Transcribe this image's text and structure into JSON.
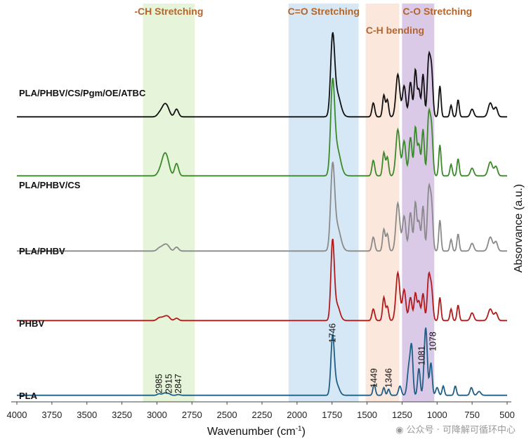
{
  "chart_data": {
    "type": "line",
    "xlabel": "Wavenumber (cm",
    "xlabel_sup": "-1",
    "xlabel_end": ")",
    "ylabel": "Absorvance (a.u.)",
    "x_reversed": true,
    "xlim": [
      4000,
      500
    ],
    "x_ticks": [
      4000,
      3750,
      3500,
      3250,
      3000,
      2750,
      2500,
      2250,
      2000,
      1750,
      1500,
      1250,
      1000,
      750,
      500
    ],
    "regions": [
      {
        "label": "-CH Stretching",
        "from": 3100,
        "to": 2730,
        "color": "#e6f4d9"
      },
      {
        "label": "C=O Stretching",
        "from": 2060,
        "to": 1560,
        "color": "#d6e8f6"
      },
      {
        "label": "C-H bending",
        "from": 1510,
        "to": 1270,
        "color": "#fbe7dc"
      },
      {
        "label": "C-O Stretching",
        "from": 1250,
        "to": 1020,
        "color": "#dbc9e8"
      }
    ],
    "series": [
      {
        "name": "PLA/PHBV/CS/Pgm/OE/ATBC",
        "color": "#111111",
        "base": 0.07,
        "peaks": [
          [
            2985,
            0.03,
            15
          ],
          [
            2945,
            0.16,
            22
          ],
          [
            2920,
            0.04,
            15
          ],
          [
            2860,
            0.1,
            14
          ],
          [
            1746,
            0.95,
            14
          ],
          [
            1715,
            0.3,
            25
          ],
          [
            1455,
            0.18,
            10
          ],
          [
            1380,
            0.28,
            9
          ],
          [
            1355,
            0.22,
            9
          ],
          [
            1280,
            0.55,
            14
          ],
          [
            1235,
            0.4,
            12
          ],
          [
            1190,
            0.45,
            11
          ],
          [
            1155,
            0.6,
            9
          ],
          [
            1130,
            0.35,
            10
          ],
          [
            1100,
            0.55,
            9
          ],
          [
            1060,
            0.72,
            10
          ],
          [
            1040,
            0.6,
            10
          ],
          [
            980,
            0.4,
            8
          ],
          [
            900,
            0.15,
            8
          ],
          [
            850,
            0.22,
            8
          ],
          [
            750,
            0.1,
            12
          ],
          [
            620,
            0.18,
            15
          ],
          [
            580,
            0.12,
            12
          ]
        ]
      },
      {
        "name": "PLA/PHBV/CS",
        "color": "#3a8a2a",
        "base": 0.07,
        "peaks": [
          [
            2985,
            0.03,
            15
          ],
          [
            2945,
            0.28,
            22
          ],
          [
            2920,
            0.06,
            15
          ],
          [
            2860,
            0.16,
            14
          ],
          [
            1746,
            1.1,
            14
          ],
          [
            1715,
            0.35,
            25
          ],
          [
            1455,
            0.2,
            10
          ],
          [
            1380,
            0.3,
            9
          ],
          [
            1355,
            0.24,
            9
          ],
          [
            1280,
            0.6,
            14
          ],
          [
            1235,
            0.45,
            12
          ],
          [
            1190,
            0.5,
            11
          ],
          [
            1155,
            0.62,
            9
          ],
          [
            1130,
            0.4,
            10
          ],
          [
            1100,
            0.6,
            9
          ],
          [
            1060,
            0.75,
            10
          ],
          [
            1040,
            0.6,
            10
          ],
          [
            980,
            0.4,
            8
          ],
          [
            900,
            0.15,
            8
          ],
          [
            850,
            0.22,
            8
          ],
          [
            750,
            0.1,
            12
          ],
          [
            620,
            0.18,
            15
          ],
          [
            580,
            0.12,
            12
          ]
        ]
      },
      {
        "name": "PLA/PHBV",
        "color": "#8a8a8a",
        "base": 0.07,
        "peaks": [
          [
            2985,
            0.03,
            15
          ],
          [
            2945,
            0.08,
            22
          ],
          [
            2920,
            0.03,
            15
          ],
          [
            2860,
            0.05,
            14
          ],
          [
            1746,
            1.0,
            14
          ],
          [
            1715,
            0.32,
            25
          ],
          [
            1455,
            0.18,
            10
          ],
          [
            1380,
            0.28,
            9
          ],
          [
            1355,
            0.22,
            9
          ],
          [
            1280,
            0.62,
            14
          ],
          [
            1235,
            0.45,
            12
          ],
          [
            1190,
            0.5,
            11
          ],
          [
            1155,
            0.62,
            9
          ],
          [
            1130,
            0.38,
            10
          ],
          [
            1100,
            0.58,
            9
          ],
          [
            1060,
            0.75,
            10
          ],
          [
            1040,
            0.6,
            10
          ],
          [
            980,
            0.4,
            8
          ],
          [
            900,
            0.15,
            8
          ],
          [
            850,
            0.22,
            8
          ],
          [
            750,
            0.1,
            12
          ],
          [
            620,
            0.18,
            15
          ],
          [
            580,
            0.12,
            12
          ]
        ]
      },
      {
        "name": "PHBV",
        "color": "#b31b1b",
        "base": 0.07,
        "peaks": [
          [
            2985,
            0.03,
            15
          ],
          [
            2945,
            0.05,
            22
          ],
          [
            2920,
            0.03,
            15
          ],
          [
            2860,
            0.03,
            14
          ],
          [
            1746,
            1.0,
            12
          ],
          [
            1715,
            0.2,
            20
          ],
          [
            1455,
            0.15,
            10
          ],
          [
            1380,
            0.3,
            9
          ],
          [
            1355,
            0.18,
            9
          ],
          [
            1280,
            0.62,
            14
          ],
          [
            1235,
            0.4,
            12
          ],
          [
            1190,
            0.3,
            11
          ],
          [
            1155,
            0.35,
            9
          ],
          [
            1130,
            0.25,
            10
          ],
          [
            1100,
            0.35,
            9
          ],
          [
            1060,
            0.55,
            10
          ],
          [
            1040,
            0.4,
            10
          ],
          [
            980,
            0.3,
            8
          ],
          [
            900,
            0.15,
            8
          ],
          [
            850,
            0.2,
            8
          ],
          [
            750,
            0.1,
            12
          ],
          [
            620,
            0.15,
            15
          ],
          [
            580,
            0.1,
            12
          ]
        ]
      },
      {
        "name": "PLA",
        "color": "#1f5f86",
        "base": 0.03,
        "peaks": [
          [
            2985,
            0.02,
            12
          ],
          [
            2945,
            0.03,
            15
          ],
          [
            2915,
            0.02,
            12
          ],
          [
            2847,
            0.01,
            12
          ],
          [
            1746,
            0.72,
            12
          ],
          [
            1720,
            0.15,
            20
          ],
          [
            1449,
            0.14,
            9
          ],
          [
            1380,
            0.1,
            8
          ],
          [
            1346,
            0.08,
            8
          ],
          [
            1265,
            0.12,
            10
          ],
          [
            1200,
            0.38,
            12
          ],
          [
            1181,
            0.55,
            9
          ],
          [
            1130,
            0.35,
            9
          ],
          [
            1081,
            0.88,
            11
          ],
          [
            1044,
            0.42,
            9
          ],
          [
            1000,
            0.1,
            10
          ],
          [
            956,
            0.12,
            8
          ],
          [
            870,
            0.12,
            8
          ],
          [
            755,
            0.1,
            10
          ],
          [
            700,
            0.05,
            12
          ]
        ]
      }
    ],
    "peak_labels": [
      "2985",
      "2915",
      "2847",
      "1746",
      "1449",
      "1346",
      "1081",
      "1078"
    ]
  },
  "watermark": "公众号 · 可降解可循环中心",
  "icon": "wechat-icon"
}
